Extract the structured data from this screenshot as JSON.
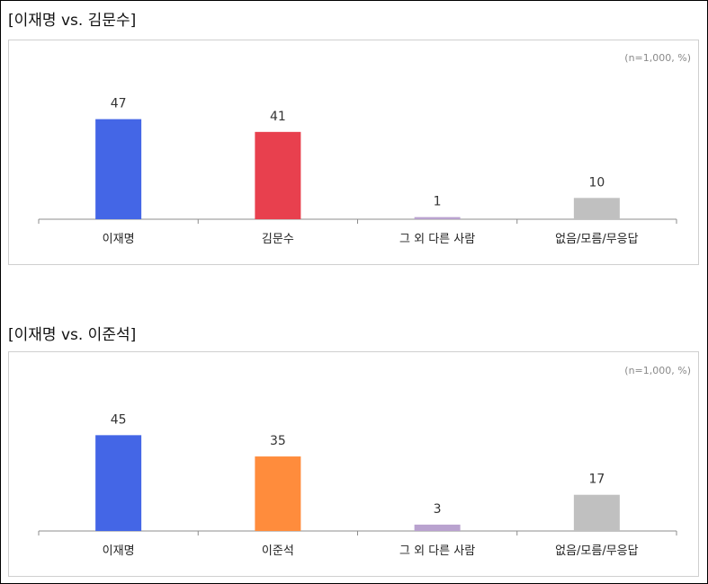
{
  "chart_data": [
    {
      "type": "bar",
      "title": "[이재명 vs. 김문수]",
      "note": "(n=1,000, %)",
      "categories": [
        "이재명",
        "김문수",
        "그 외 다른 사람",
        "없음/모름/무응답"
      ],
      "values": [
        47,
        41,
        1,
        10
      ],
      "colors": [
        "#4466e6",
        "#e8404e",
        "#b9a2cf",
        "#c0c0c0"
      ],
      "ylim": [
        0,
        50
      ],
      "grid": false,
      "legend": "none"
    },
    {
      "type": "bar",
      "title": "[이재명 vs. 이준석]",
      "note": "(n=1,000, %)",
      "categories": [
        "이재명",
        "이준석",
        "그 외 다른 사람",
        "없음/모름/무응답"
      ],
      "values": [
        45,
        35,
        3,
        17
      ],
      "colors": [
        "#4466e6",
        "#ff8c3c",
        "#b9a2cf",
        "#c0c0c0"
      ],
      "ylim": [
        0,
        50
      ],
      "grid": false,
      "legend": "none"
    }
  ]
}
